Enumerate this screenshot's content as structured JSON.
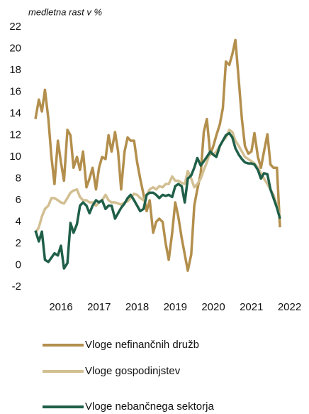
{
  "chart_data": {
    "type": "line",
    "subtitle": "medletna rast v %",
    "x": [
      2015.33,
      2015.42,
      2015.5,
      2015.58,
      2015.67,
      2015.75,
      2015.83,
      2015.92,
      2016,
      2016.08,
      2016.17,
      2016.25,
      2016.33,
      2016.42,
      2016.5,
      2016.58,
      2016.67,
      2016.75,
      2016.83,
      2016.92,
      2017,
      2017.08,
      2017.17,
      2017.25,
      2017.33,
      2017.42,
      2017.5,
      2017.58,
      2017.67,
      2017.75,
      2017.83,
      2017.92,
      2018,
      2018.08,
      2018.17,
      2018.25,
      2018.33,
      2018.42,
      2018.5,
      2018.58,
      2018.67,
      2018.75,
      2018.83,
      2018.92,
      2019,
      2019.08,
      2019.17,
      2019.25,
      2019.33,
      2019.42,
      2019.5,
      2019.58,
      2019.67,
      2019.75,
      2019.83,
      2019.92,
      2020,
      2020.08,
      2020.17,
      2020.25,
      2020.33,
      2020.42,
      2020.5,
      2020.58,
      2020.67,
      2020.75,
      2020.83,
      2020.92,
      2021,
      2021.08,
      2021.17,
      2021.25,
      2021.33,
      2021.42,
      2021.5,
      2021.58,
      2021.67,
      2021.75
    ],
    "series": [
      {
        "name": "Vloge nefinančnih družb",
        "color": "#b38f4d",
        "values": [
          13.5,
          15.3,
          14.2,
          16.2,
          13.5,
          10,
          7.5,
          11.5,
          9.5,
          7.8,
          12.5,
          12,
          9,
          10,
          8.8,
          10.5,
          7.2,
          8,
          9,
          7,
          9,
          10,
          9.8,
          12,
          10.5,
          12.3,
          10.5,
          7,
          10.5,
          11.8,
          11.5,
          11.5,
          9.5,
          8,
          6.5,
          5,
          6,
          3,
          4,
          4.3,
          4,
          2,
          0.5,
          3,
          5.8,
          4.5,
          2.5,
          1,
          -0.5,
          1,
          5.5,
          7,
          8.5,
          12.3,
          13.5,
          10.2,
          11,
          12,
          13,
          14.5,
          18.8,
          18.5,
          19.5,
          20.8,
          17,
          13.5,
          11,
          10.3,
          10.5,
          12.2,
          10,
          9,
          10.5,
          12.1,
          9.3,
          9,
          9,
          3.5
        ]
      },
      {
        "name": "Vloge gospodinjstev",
        "color": "#d2bf92",
        "values": [
          3,
          3.5,
          4.5,
          5.2,
          5.5,
          6.2,
          6.2,
          6,
          5.8,
          5.7,
          6.2,
          6.7,
          6.9,
          7,
          6.3,
          6,
          6,
          5.8,
          5.8,
          5.5,
          5.8,
          6,
          6.5,
          6,
          5.8,
          5.8,
          5.7,
          5.6,
          5.8,
          5.9,
          6.2,
          6.6,
          6.5,
          6.2,
          6,
          6.5,
          7,
          7.2,
          7,
          7.3,
          7.2,
          7.5,
          7.5,
          8.2,
          7.8,
          7.8,
          7.6,
          7.5,
          8.7,
          8,
          7.2,
          7.5,
          8,
          8.8,
          9.5,
          10.5,
          10.2,
          10.5,
          11,
          11.5,
          11.8,
          12.5,
          12.3,
          11.5,
          11,
          10.5,
          10,
          9.8,
          9.6,
          9.4,
          9,
          8.5,
          8,
          7.5,
          7,
          6.5,
          5.5,
          4.5
        ]
      },
      {
        "name": "Vloge nebančnega sektorja",
        "color": "#1f5f48",
        "values": [
          3.2,
          2.2,
          3.1,
          0.5,
          0.3,
          0.7,
          1.1,
          0.9,
          1.8,
          -0.3,
          0.2,
          3.9,
          3,
          3.8,
          5.5,
          5.8,
          5.5,
          4.8,
          5.5,
          6,
          5.8,
          6,
          5.2,
          5.5,
          5.5,
          4.3,
          4.8,
          5.3,
          5.7,
          6.2,
          6.5,
          6,
          5.5,
          5,
          5.2,
          6.5,
          6.7,
          6.7,
          6.5,
          6.2,
          6.5,
          6.4,
          6.5,
          6.3,
          7.3,
          7.5,
          7.3,
          5.8,
          8,
          8.3,
          9,
          9.9,
          9.2,
          9.6,
          10,
          10.5,
          10.2,
          10,
          11,
          11.5,
          12,
          12.2,
          11.8,
          10.8,
          10.2,
          9.8,
          9.5,
          9.4,
          9.4,
          9.3,
          8.8,
          8,
          8.5,
          8.4,
          7,
          6.2,
          5.3,
          4.3
        ]
      }
    ],
    "xlim": [
      2015.2,
      2022.4
    ],
    "xticks": [
      2016,
      2017,
      2018,
      2019,
      2020,
      2021,
      2022
    ],
    "ylim": [
      -2,
      22
    ],
    "yticks": [
      -2,
      0,
      2,
      4,
      6,
      8,
      10,
      12,
      14,
      16,
      18,
      20,
      22
    ],
    "grid": false,
    "legend": "bottom"
  }
}
